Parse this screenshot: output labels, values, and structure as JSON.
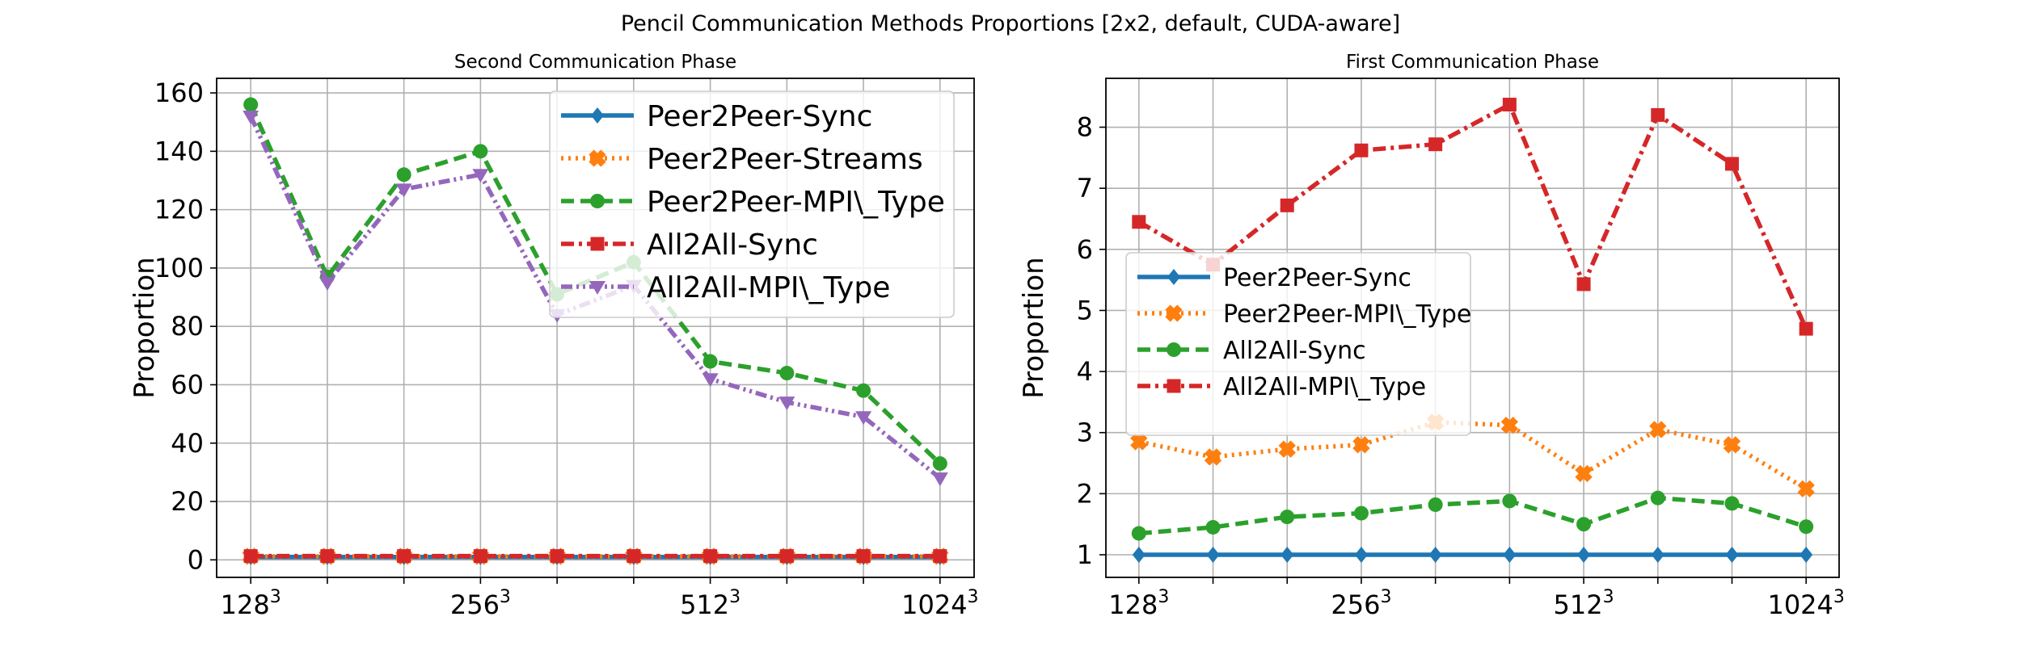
{
  "suptitle": "Pencil Communication Methods Proportions [2x2, default, CUDA-aware]",
  "colors": {
    "Peer2Peer-Sync": "#1f77b4",
    "Peer2Peer-Streams": "#ff7f0e",
    "Peer2Peer-MPI\\_Type": "#2ca02c",
    "All2All-Sync": "#d62728",
    "All2All-MPI\\_Type": "#9467bd"
  },
  "chart_data": [
    {
      "type": "line",
      "title": "Second Communication Phase",
      "ylabel": "Proportion",
      "xlabel": "",
      "x_count": 10,
      "xticks": [
        {
          "index": 0,
          "base": "128",
          "exp": "3"
        },
        {
          "index": 3,
          "base": "256",
          "exp": "3"
        },
        {
          "index": 6,
          "base": "512",
          "exp": "3"
        },
        {
          "index": 9,
          "base": "1024",
          "exp": "3"
        }
      ],
      "ylim": [
        -6,
        165
      ],
      "yticks": [
        0,
        20,
        40,
        60,
        80,
        100,
        120,
        140,
        160
      ],
      "grid": true,
      "legend_position": "upper right",
      "series": [
        {
          "name": "Peer2Peer-Sync",
          "colorKey": "Peer2Peer-Sync",
          "style": "solid",
          "marker": "diamond",
          "values": [
            1,
            1,
            1,
            1,
            1,
            1,
            1,
            1,
            1,
            1
          ]
        },
        {
          "name": "Peer2Peer-Streams",
          "colorKey": "Peer2Peer-Streams",
          "style": "dotted",
          "marker": "x",
          "values": [
            1.2,
            1.2,
            1.2,
            1.2,
            1.2,
            1.2,
            1.2,
            1.2,
            1.2,
            1.2
          ]
        },
        {
          "name": "Peer2Peer-MPI\\_Type",
          "colorKey": "Peer2Peer-MPI\\_Type",
          "style": "dashed",
          "marker": "circle",
          "values": [
            156,
            97,
            132,
            140,
            91,
            102,
            68,
            64,
            58,
            33
          ]
        },
        {
          "name": "All2All-Sync",
          "colorKey": "All2All-Sync",
          "style": "dashdot",
          "marker": "square",
          "values": [
            1.3,
            1.3,
            1.3,
            1.3,
            1.3,
            1.3,
            1.3,
            1.3,
            1.3,
            1.3
          ]
        },
        {
          "name": "All2All-MPI\\_Type",
          "colorKey": "All2All-MPI\\_Type",
          "style": "dashdotdot",
          "marker": "tri_down",
          "values": [
            152,
            95,
            127,
            132,
            84,
            94,
            62,
            54,
            49,
            28
          ]
        }
      ]
    },
    {
      "type": "line",
      "title": "First Communication Phase",
      "ylabel": "Proportion",
      "xlabel": "",
      "x_count": 10,
      "xticks": [
        {
          "index": 0,
          "base": "128",
          "exp": "3"
        },
        {
          "index": 3,
          "base": "256",
          "exp": "3"
        },
        {
          "index": 6,
          "base": "512",
          "exp": "3"
        },
        {
          "index": 9,
          "base": "1024",
          "exp": "3"
        }
      ],
      "ylim": [
        0.63,
        8.8
      ],
      "yticks": [
        1,
        2,
        3,
        4,
        5,
        6,
        7,
        8
      ],
      "grid": true,
      "legend_position": "center left",
      "series": [
        {
          "name": "Peer2Peer-Sync",
          "colorKey": "Peer2Peer-Sync",
          "style": "solid",
          "marker": "diamond",
          "values": [
            1,
            1,
            1,
            1,
            1,
            1,
            1,
            1,
            1,
            1
          ]
        },
        {
          "name": "Peer2Peer-MPI\\_Type",
          "colorKey": "Peer2Peer-Streams",
          "style": "dotted",
          "marker": "x",
          "values": [
            2.85,
            2.6,
            2.73,
            2.8,
            3.17,
            3.12,
            2.33,
            3.05,
            2.8,
            2.08
          ]
        },
        {
          "name": "All2All-Sync",
          "colorKey": "Peer2Peer-MPI\\_Type",
          "style": "dashed",
          "marker": "circle",
          "values": [
            1.35,
            1.45,
            1.62,
            1.68,
            1.82,
            1.88,
            1.5,
            1.93,
            1.84,
            1.46
          ]
        },
        {
          "name": "All2All-MPI\\_Type",
          "colorKey": "All2All-Sync",
          "style": "dashdot",
          "marker": "square",
          "values": [
            6.45,
            5.75,
            6.72,
            7.62,
            7.72,
            8.37,
            5.43,
            8.2,
            7.4,
            4.7
          ]
        }
      ]
    }
  ]
}
